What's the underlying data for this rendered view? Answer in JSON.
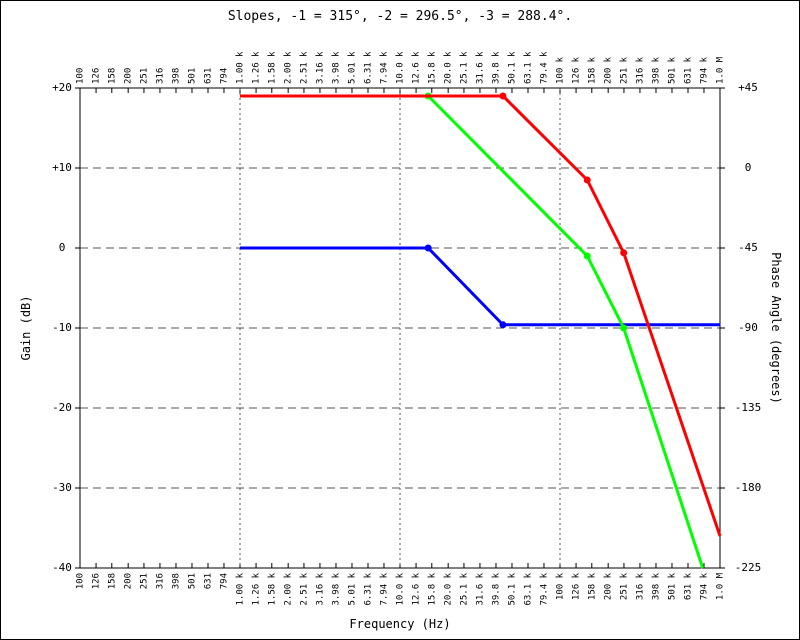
{
  "chart_data": {
    "type": "line",
    "title": "Slopes, -1 = 315°, -2 = 296.5°, -3 = 288.4°.",
    "xlabel": "Frequency (Hz)",
    "ylabel": "Gain (dB)",
    "y2label": "Phase Angle (degrees)",
    "xscale": "log",
    "grid": true,
    "xlim": [
      100,
      1000000
    ],
    "xticks": [
      100,
      126,
      158,
      200,
      251,
      316,
      398,
      501,
      631,
      794,
      {
        "value": 1000,
        "label": "1.00 k"
      },
      {
        "value": 1260,
        "label": "1.26 k"
      },
      {
        "value": 1580,
        "label": "1.58 k"
      },
      {
        "value": 2000,
        "label": "2.00 k"
      },
      {
        "value": 2510,
        "label": "2.51 k"
      },
      {
        "value": 3160,
        "label": "3.16 k"
      },
      {
        "value": 3980,
        "label": "3.98 k"
      },
      {
        "value": 5010,
        "label": "5.01 k"
      },
      {
        "value": 6310,
        "label": "6.31 k"
      },
      {
        "value": 7940,
        "label": "7.94 k"
      },
      {
        "value": 10000,
        "label": "10.0 k"
      },
      {
        "value": 12600,
        "label": "12.6 k"
      },
      {
        "value": 15800,
        "label": "15.8 k"
      },
      {
        "value": 20000,
        "label": "20.0 k"
      },
      {
        "value": 25100,
        "label": "25.1 k"
      },
      {
        "value": 31600,
        "label": "31.6 k"
      },
      {
        "value": 39800,
        "label": "39.8 k"
      },
      {
        "value": 50100,
        "label": "50.1 k"
      },
      {
        "value": 63100,
        "label": "63.1 k"
      },
      {
        "value": 79400,
        "label": "79.4 k"
      },
      {
        "value": 100000,
        "label": "100 k"
      },
      {
        "value": 126000,
        "label": "126 k"
      },
      {
        "value": 158000,
        "label": "158 k"
      },
      {
        "value": 200000,
        "label": "200 k"
      },
      {
        "value": 251000,
        "label": "251 k"
      },
      {
        "value": 316000,
        "label": "316 k"
      },
      {
        "value": 398000,
        "label": "398 k"
      },
      {
        "value": 501000,
        "label": "501 k"
      },
      {
        "value": 631000,
        "label": "631 k"
      },
      {
        "value": 794000,
        "label": "794 k"
      },
      {
        "value": 1000000,
        "label": "1.0 M"
      }
    ],
    "ylim": [
      -40,
      20
    ],
    "yticks": [
      {
        "value": 20,
        "label": "+20"
      },
      {
        "value": 10,
        "label": "+10"
      },
      0,
      -10,
      -20,
      -30,
      -40
    ],
    "y2lim": [
      -225,
      45
    ],
    "y2ticks": [
      {
        "value": 45,
        "label": "+45"
      },
      0,
      -45,
      -90,
      -135,
      -180,
      -225
    ],
    "series": [
      {
        "color": "#0000ff",
        "x": [
          1000,
          15000,
          44000,
          1000000
        ],
        "values": [
          0,
          0,
          -9.6,
          -9.6
        ]
      },
      {
        "color": "#00ff00",
        "x": [
          1000,
          15000,
          148000,
          250000,
          780000
        ],
        "values": [
          19,
          19,
          -1,
          -10,
          -40
        ]
      },
      {
        "color": "#ff0000",
        "x": [
          1000,
          44000,
          148000,
          250000,
          1000000
        ],
        "values": [
          19,
          19,
          8.5,
          -0.6,
          -36
        ]
      }
    ]
  }
}
